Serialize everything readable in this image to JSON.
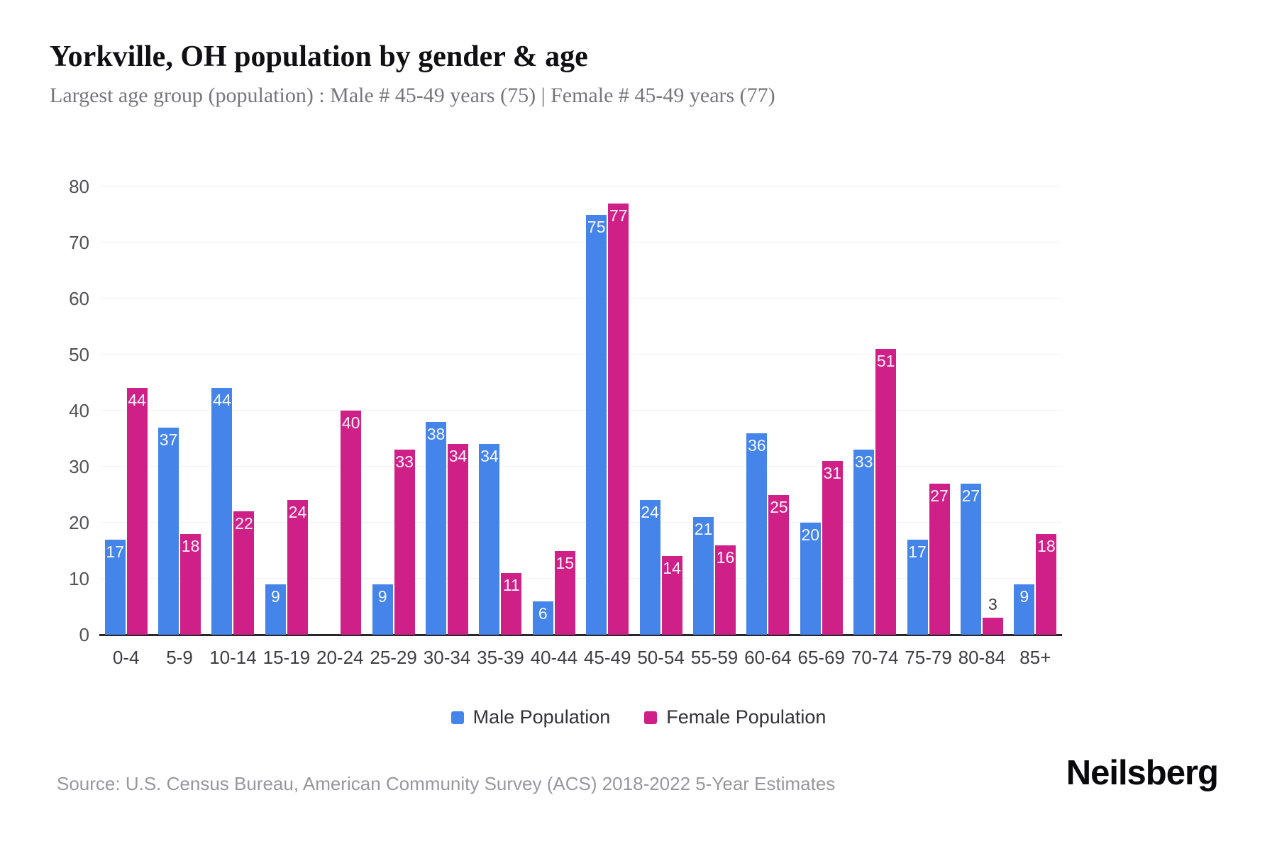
{
  "header": {
    "title": "Yorkville, OH population by gender & age",
    "subtitle": "Largest age group (population) : Male # 45-49 years (75) | Female # 45-49 years (77)"
  },
  "chart_data": {
    "type": "bar",
    "title": "Yorkville, OH population by gender & age",
    "categories": [
      "0-4",
      "5-9",
      "10-14",
      "15-19",
      "20-24",
      "25-29",
      "30-34",
      "35-39",
      "40-44",
      "45-49",
      "50-54",
      "55-59",
      "60-64",
      "65-69",
      "70-74",
      "75-79",
      "80-84",
      "85+"
    ],
    "series": [
      {
        "name": "Male Population",
        "color": "#4584e8",
        "values": [
          17,
          37,
          44,
          9,
          0,
          9,
          38,
          34,
          6,
          75,
          24,
          21,
          36,
          20,
          33,
          17,
          27,
          9
        ]
      },
      {
        "name": "Female Population",
        "color": "#cf2088",
        "values": [
          44,
          18,
          22,
          24,
          40,
          33,
          34,
          11,
          15,
          77,
          14,
          16,
          25,
          31,
          51,
          27,
          3,
          18
        ]
      }
    ],
    "xlabel": "",
    "ylabel": "",
    "ylim": [
      0,
      80
    ],
    "yticks": [
      0,
      10,
      20,
      30,
      40,
      50,
      60,
      70,
      80
    ],
    "grid": true,
    "legend_position": "bottom",
    "bar_label_color_inside": "#ffffff",
    "bar_label_color_outside": "#3a3a3f",
    "gridline_color": "#f0f0f2",
    "baseline_color": "#26262b"
  },
  "footer": {
    "source": "Source: U.S. Census Bureau, American Community Survey (ACS) 2018-2022 5-Year Estimates",
    "brand": "Neilsberg"
  }
}
